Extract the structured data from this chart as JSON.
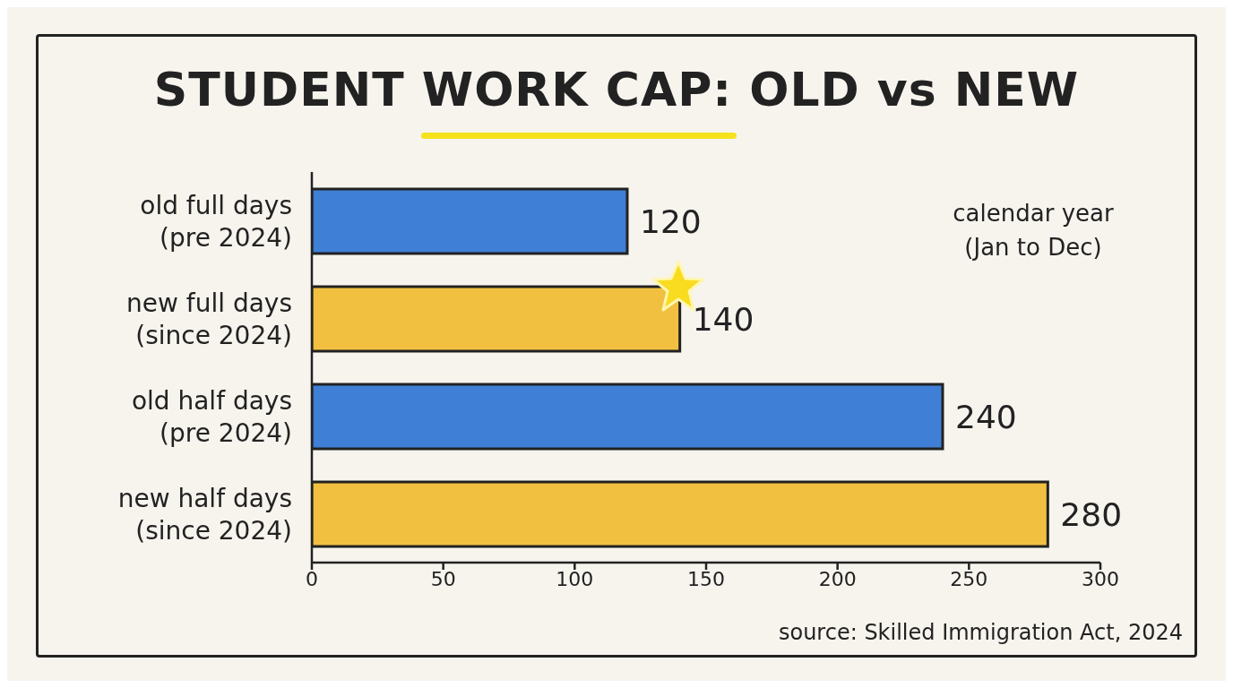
{
  "chart_data": {
    "type": "bar",
    "orientation": "horizontal",
    "title": "STUDENT WORK CAP: OLD vs NEW",
    "categories": [
      "old full days\n(pre 2024)",
      "new full days\n(since 2024)",
      "old half days\n(pre 2024)",
      "new half days\n(since 2024)"
    ],
    "values": [
      120,
      140,
      240,
      280
    ],
    "colors": [
      "#3f7fd6",
      "#f2c041",
      "#3f7fd6",
      "#f2c041"
    ],
    "xlim": [
      0,
      300
    ],
    "xticks": [
      0,
      50,
      100,
      150,
      200,
      250,
      300
    ],
    "data_labels": true,
    "annotations": [
      "calendar year\n(Jan to Dec)",
      "source: Skilled Immigration Act, 2024"
    ]
  }
}
